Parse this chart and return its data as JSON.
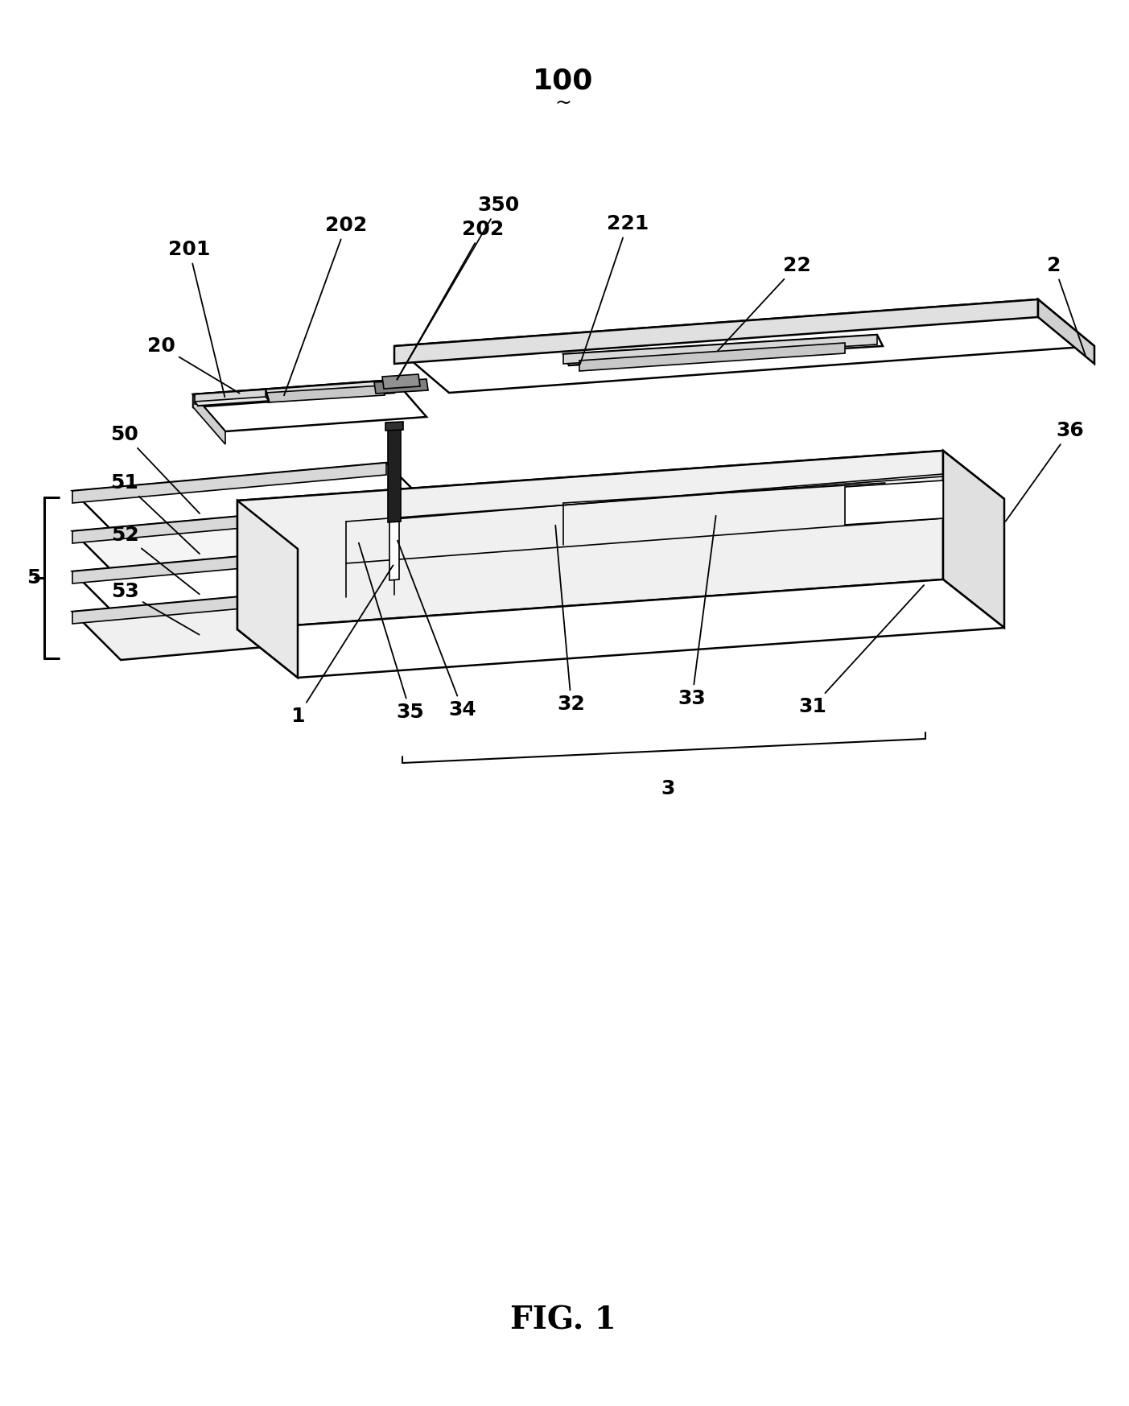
{
  "background_color": "#ffffff",
  "line_color": "#000000",
  "title": "100",
  "fig_label": "FIG. 1",
  "font_size_title": 26,
  "font_size_label": 18,
  "font_size_fig": 28,
  "lw_main": 1.8,
  "lw_thin": 1.2,
  "lw_thick": 2.2
}
